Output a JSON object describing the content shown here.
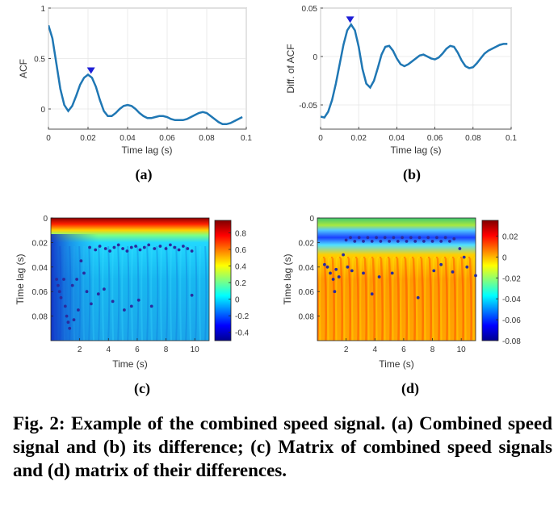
{
  "chart_data": [
    {
      "type": "line",
      "panel_label": "(a)",
      "xlabel": "Time lag (s)",
      "ylabel": "ACF",
      "xlim": [
        0,
        0.1
      ],
      "ylim": [
        -0.2,
        1
      ],
      "xticks": [
        0,
        0.02,
        0.04,
        0.06,
        0.08,
        0.1
      ],
      "xtick_labels": [
        "0",
        "0.02",
        "0.04",
        "0.06",
        "0.08",
        "0.1"
      ],
      "yticks": [
        0,
        0.5,
        1
      ],
      "ytick_labels": [
        "0",
        "0.5",
        "1"
      ],
      "grid": true,
      "series": [
        {
          "name": "ACF",
          "x": [
            0,
            0.002,
            0.004,
            0.006,
            0.008,
            0.01,
            0.012,
            0.014,
            0.016,
            0.018,
            0.02,
            0.022,
            0.024,
            0.026,
            0.028,
            0.03,
            0.032,
            0.034,
            0.036,
            0.038,
            0.04,
            0.042,
            0.044,
            0.046,
            0.048,
            0.05,
            0.052,
            0.054,
            0.056,
            0.058,
            0.06,
            0.062,
            0.064,
            0.066,
            0.068,
            0.07,
            0.072,
            0.074,
            0.076,
            0.078,
            0.08,
            0.082,
            0.084,
            0.086,
            0.088,
            0.09,
            0.092,
            0.094,
            0.096,
            0.098
          ],
          "y": [
            0.83,
            0.7,
            0.45,
            0.2,
            0.04,
            -0.02,
            0.03,
            0.13,
            0.24,
            0.31,
            0.34,
            0.31,
            0.22,
            0.09,
            -0.02,
            -0.07,
            -0.07,
            -0.04,
            0.0,
            0.03,
            0.04,
            0.03,
            0.0,
            -0.04,
            -0.07,
            -0.09,
            -0.09,
            -0.08,
            -0.07,
            -0.07,
            -0.08,
            -0.1,
            -0.11,
            -0.11,
            -0.11,
            -0.1,
            -0.08,
            -0.06,
            -0.04,
            -0.03,
            -0.04,
            -0.07,
            -0.1,
            -0.13,
            -0.15,
            -0.15,
            -0.14,
            -0.12,
            -0.1,
            -0.08
          ]
        }
      ],
      "marker": {
        "x": 0.0215,
        "y": 0.38,
        "label": "peak"
      }
    },
    {
      "type": "line",
      "panel_label": "(b)",
      "xlabel": "Time lag (s)",
      "ylabel": "Diff. of ACF",
      "xlim": [
        0,
        0.1
      ],
      "ylim": [
        -0.075,
        0.05
      ],
      "xticks": [
        0,
        0.02,
        0.04,
        0.06,
        0.08,
        0.1
      ],
      "xtick_labels": [
        "0",
        "0.02",
        "0.04",
        "0.06",
        "0.08",
        "0.1"
      ],
      "yticks": [
        -0.05,
        0,
        0.05
      ],
      "ytick_labels": [
        "-0.05",
        "0",
        "0.05"
      ],
      "grid": true,
      "series": [
        {
          "name": "Diff. of ACF",
          "x": [
            0,
            0.002,
            0.004,
            0.006,
            0.008,
            0.01,
            0.012,
            0.014,
            0.016,
            0.018,
            0.02,
            0.022,
            0.024,
            0.026,
            0.028,
            0.03,
            0.032,
            0.034,
            0.036,
            0.038,
            0.04,
            0.042,
            0.044,
            0.046,
            0.048,
            0.05,
            0.052,
            0.054,
            0.056,
            0.058,
            0.06,
            0.062,
            0.064,
            0.066,
            0.068,
            0.07,
            0.072,
            0.074,
            0.076,
            0.078,
            0.08,
            0.082,
            0.084,
            0.086,
            0.088,
            0.09,
            0.092,
            0.094,
            0.096,
            0.098
          ],
          "y": [
            -0.062,
            -0.063,
            -0.057,
            -0.045,
            -0.028,
            -0.008,
            0.012,
            0.027,
            0.033,
            0.027,
            0.01,
            -0.013,
            -0.028,
            -0.032,
            -0.025,
            -0.012,
            0.002,
            0.01,
            0.011,
            0.006,
            -0.002,
            -0.008,
            -0.01,
            -0.008,
            -0.005,
            -0.002,
            0.001,
            0.002,
            0.0,
            -0.002,
            -0.003,
            -0.001,
            0.003,
            0.008,
            0.011,
            0.01,
            0.004,
            -0.004,
            -0.01,
            -0.012,
            -0.011,
            -0.007,
            -0.002,
            0.003,
            0.006,
            0.008,
            0.01,
            0.012,
            0.013,
            0.013
          ]
        }
      ],
      "marker": {
        "x": 0.0155,
        "y": 0.038,
        "label": "peak"
      }
    },
    {
      "type": "heatmap",
      "panel_label": "(c)",
      "xlabel": "Time (s)",
      "ylabel": "Time lag (s)",
      "xlim": [
        0,
        11
      ],
      "ylim": [
        0,
        0.1
      ],
      "xticks": [
        2,
        4,
        6,
        8,
        10
      ],
      "xtick_labels": [
        "2",
        "4",
        "6",
        "8",
        "10"
      ],
      "yticks": [
        0,
        0.02,
        0.04,
        0.06,
        0.08
      ],
      "ytick_labels": [
        "0",
        "0.02",
        "0.04",
        "0.06",
        "0.08"
      ],
      "colorbar_range": [
        -0.5,
        0.95
      ],
      "colorbar_ticks": [
        0.8,
        0.6,
        0.4,
        0.2,
        0,
        -0.2,
        -0.4
      ],
      "colorbar_tick_labels": [
        "0.8",
        "0.6",
        "0.4",
        "0.2",
        "0",
        "-0.2",
        "-0.4"
      ],
      "peaks": [
        [
          2.7,
          0.024
        ],
        [
          3.1,
          0.026
        ],
        [
          3.4,
          0.023
        ],
        [
          3.8,
          0.025
        ],
        [
          4.1,
          0.027
        ],
        [
          4.4,
          0.024
        ],
        [
          4.7,
          0.022
        ],
        [
          5.0,
          0.025
        ],
        [
          5.3,
          0.027
        ],
        [
          5.6,
          0.024
        ],
        [
          5.9,
          0.023
        ],
        [
          6.2,
          0.026
        ],
        [
          6.5,
          0.024
        ],
        [
          6.8,
          0.022
        ],
        [
          7.2,
          0.025
        ],
        [
          7.6,
          0.023
        ],
        [
          8.0,
          0.025
        ],
        [
          8.3,
          0.022
        ],
        [
          8.6,
          0.024
        ],
        [
          8.9,
          0.026
        ],
        [
          9.2,
          0.023
        ],
        [
          9.5,
          0.025
        ],
        [
          9.8,
          0.027
        ],
        [
          0.4,
          0.05
        ],
        [
          0.5,
          0.055
        ],
        [
          0.6,
          0.06
        ],
        [
          0.7,
          0.065
        ],
        [
          0.9,
          0.05
        ],
        [
          1.0,
          0.072
        ],
        [
          1.1,
          0.08
        ],
        [
          1.2,
          0.085
        ],
        [
          1.3,
          0.09
        ],
        [
          1.5,
          0.055
        ],
        [
          1.6,
          0.083
        ],
        [
          1.8,
          0.05
        ],
        [
          1.9,
          0.075
        ],
        [
          2.1,
          0.035
        ],
        [
          2.3,
          0.045
        ],
        [
          2.5,
          0.06
        ],
        [
          2.8,
          0.07
        ],
        [
          3.3,
          0.062
        ],
        [
          3.7,
          0.058
        ],
        [
          4.3,
          0.068
        ],
        [
          5.1,
          0.075
        ],
        [
          5.6,
          0.072
        ],
        [
          6.1,
          0.067
        ],
        [
          7.0,
          0.072
        ],
        [
          9.8,
          0.063
        ]
      ]
    },
    {
      "type": "heatmap",
      "panel_label": "(d)",
      "xlabel": "Time (s)",
      "ylabel": "Time lag (s)",
      "xlim": [
        0,
        11
      ],
      "ylim": [
        0,
        0.1
      ],
      "xticks": [
        2,
        4,
        6,
        8,
        10
      ],
      "xtick_labels": [
        "2",
        "4",
        "6",
        "8",
        "10"
      ],
      "yticks": [
        0,
        0.02,
        0.04,
        0.06,
        0.08
      ],
      "ytick_labels": [
        "0",
        "0.02",
        "0.04",
        "0.06",
        "0.08"
      ],
      "colorbar_range": [
        -0.08,
        0.035
      ],
      "colorbar_ticks": [
        0.02,
        0,
        -0.02,
        -0.04,
        -0.06,
        -0.08
      ],
      "colorbar_tick_labels": [
        "0.02",
        "0",
        "-0.02",
        "-0.04",
        "-0.06",
        "-0.08"
      ],
      "peaks": [
        [
          2.0,
          0.018
        ],
        [
          2.3,
          0.016
        ],
        [
          2.6,
          0.019
        ],
        [
          2.9,
          0.016
        ],
        [
          3.2,
          0.019
        ],
        [
          3.5,
          0.016
        ],
        [
          3.8,
          0.019
        ],
        [
          4.1,
          0.016
        ],
        [
          4.4,
          0.019
        ],
        [
          4.7,
          0.016
        ],
        [
          5.0,
          0.019
        ],
        [
          5.3,
          0.016
        ],
        [
          5.6,
          0.019
        ],
        [
          5.9,
          0.016
        ],
        [
          6.2,
          0.019
        ],
        [
          6.5,
          0.016
        ],
        [
          6.8,
          0.019
        ],
        [
          7.1,
          0.016
        ],
        [
          7.4,
          0.019
        ],
        [
          7.7,
          0.016
        ],
        [
          8.0,
          0.019
        ],
        [
          8.3,
          0.016
        ],
        [
          8.6,
          0.019
        ],
        [
          8.9,
          0.016
        ],
        [
          9.2,
          0.019
        ],
        [
          9.5,
          0.017
        ],
        [
          9.9,
          0.025
        ],
        [
          10.2,
          0.032
        ],
        [
          10.4,
          0.04
        ],
        [
          0.5,
          0.038
        ],
        [
          0.7,
          0.04
        ],
        [
          0.9,
          0.045
        ],
        [
          1.1,
          0.05
        ],
        [
          1.3,
          0.042
        ],
        [
          1.5,
          0.048
        ],
        [
          1.8,
          0.03
        ],
        [
          2.1,
          0.04
        ],
        [
          2.4,
          0.043
        ],
        [
          3.2,
          0.045
        ],
        [
          4.3,
          0.048
        ],
        [
          5.2,
          0.045
        ],
        [
          8.1,
          0.043
        ],
        [
          8.6,
          0.038
        ],
        [
          9.4,
          0.044
        ],
        [
          1.2,
          0.06
        ],
        [
          3.8,
          0.062
        ],
        [
          7.0,
          0.065
        ],
        [
          11.0,
          0.047
        ]
      ]
    }
  ],
  "caption": "Fig. 2: Example of the combined speed signal. (a) Combined speed signal and (b) its difference; (c) Matrix of combined speed signals and (d) matrix of their differences.",
  "colors": {
    "line": "#1f77b4",
    "marker": "#1f1fd6",
    "peak_dot": "#2b2b9e",
    "axis": "#262626",
    "grid": "#e6e6e6"
  }
}
